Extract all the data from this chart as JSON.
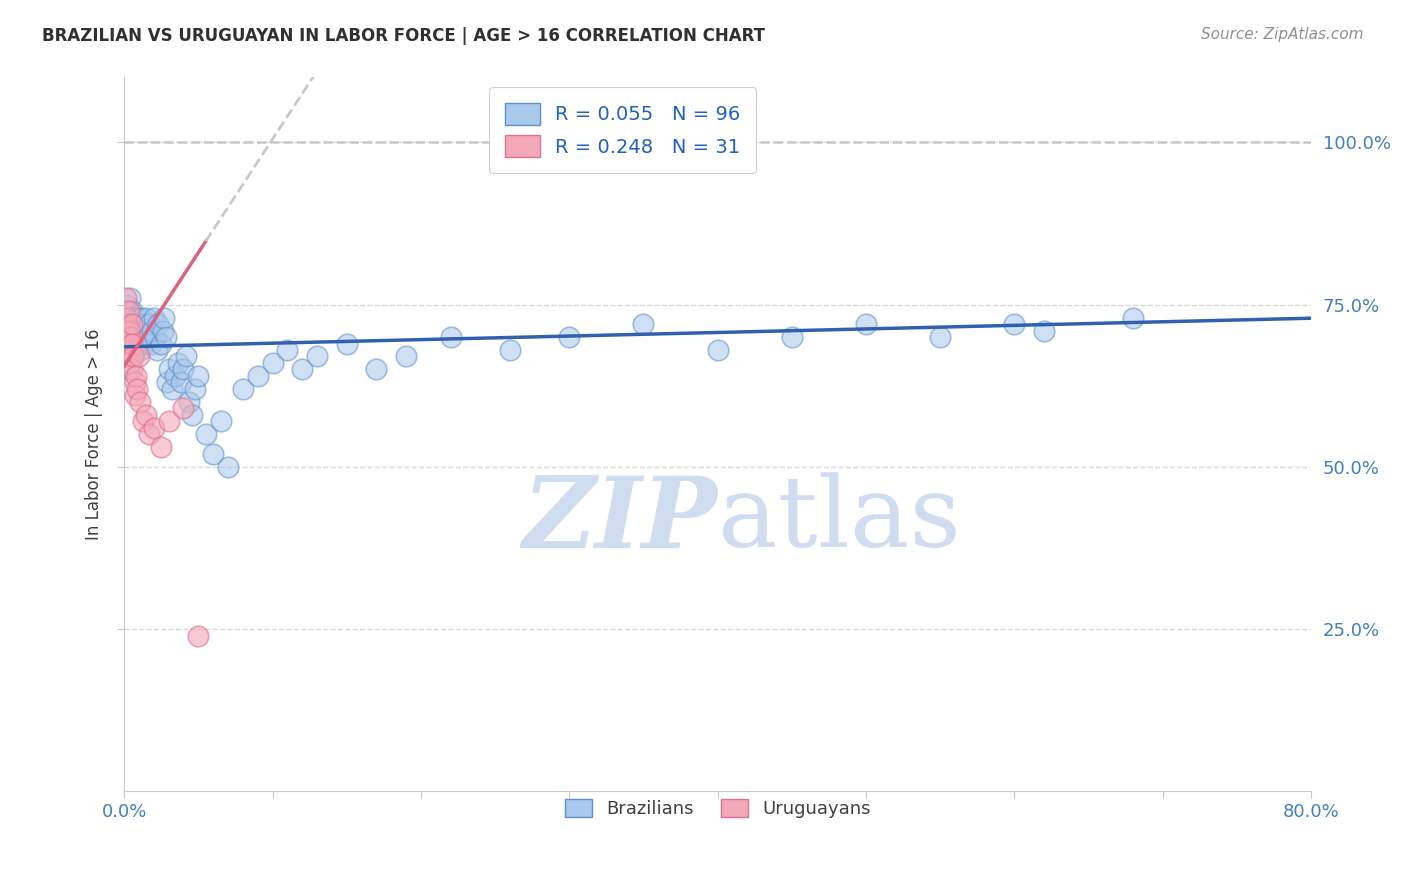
{
  "title": "BRAZILIAN VS URUGUAYAN IN LABOR FORCE | AGE > 16 CORRELATION CHART",
  "source": "Source: ZipAtlas.com",
  "ylabel": "In Labor Force | Age > 16",
  "xlim": [
    0.0,
    0.8
  ],
  "ylim": [
    0.0,
    1.1
  ],
  "xticks": [
    0.0,
    0.1,
    0.2,
    0.3,
    0.4,
    0.5,
    0.6,
    0.7,
    0.8
  ],
  "xticklabels": [
    "0.0%",
    "",
    "",
    "",
    "",
    "",
    "",
    "",
    "80.0%"
  ],
  "yticks": [
    0.25,
    0.5,
    0.75,
    1.0
  ],
  "yticklabels": [
    "25.0%",
    "50.0%",
    "75.0%",
    "100.0%"
  ],
  "blue_color": "#A8C8EC",
  "pink_color": "#F4A8B8",
  "blue_edge_color": "#6090C8",
  "pink_edge_color": "#E07090",
  "blue_line_color": "#3060B0",
  "pink_line_color": "#E06080",
  "dashed_line_color": "#C8C8C8",
  "grid_color": "#D8D8D8",
  "title_color": "#303030",
  "axis_label_color": "#404040",
  "tick_color": "#4080C0",
  "watermark_zip": "ZIP",
  "watermark_atlas": "atlas",
  "watermark_color": "#D0DCF0",
  "legend_text_color": "#2060C0",
  "legend_n_color": "#2060C0",
  "R_blue": 0.055,
  "R_pink": 0.248,
  "N_blue": 96,
  "N_pink": 31,
  "blue_line_intercept": 0.685,
  "blue_line_slope": 0.055,
  "pink_line_intercept": 0.655,
  "pink_line_slope": 3.5,
  "blue_scatter_x": [
    0.001,
    0.001,
    0.001,
    0.001,
    0.001,
    0.002,
    0.002,
    0.002,
    0.002,
    0.002,
    0.003,
    0.003,
    0.003,
    0.003,
    0.003,
    0.003,
    0.004,
    0.004,
    0.004,
    0.004,
    0.004,
    0.005,
    0.005,
    0.005,
    0.005,
    0.006,
    0.006,
    0.006,
    0.007,
    0.007,
    0.007,
    0.008,
    0.008,
    0.008,
    0.009,
    0.009,
    0.01,
    0.01,
    0.01,
    0.011,
    0.011,
    0.012,
    0.012,
    0.013,
    0.013,
    0.014,
    0.015,
    0.015,
    0.016,
    0.017,
    0.018,
    0.019,
    0.02,
    0.021,
    0.022,
    0.023,
    0.025,
    0.026,
    0.027,
    0.028,
    0.029,
    0.03,
    0.032,
    0.034,
    0.036,
    0.038,
    0.04,
    0.042,
    0.044,
    0.046,
    0.048,
    0.05,
    0.055,
    0.06,
    0.065,
    0.07,
    0.08,
    0.09,
    0.1,
    0.11,
    0.12,
    0.13,
    0.15,
    0.17,
    0.19,
    0.22,
    0.26,
    0.3,
    0.35,
    0.4,
    0.45,
    0.5,
    0.55,
    0.6,
    0.62,
    0.68
  ],
  "blue_scatter_y": [
    0.72,
    0.7,
    0.68,
    0.66,
    0.74,
    0.71,
    0.69,
    0.67,
    0.73,
    0.75,
    0.7,
    0.68,
    0.66,
    0.72,
    0.74,
    0.65,
    0.69,
    0.71,
    0.67,
    0.73,
    0.76,
    0.7,
    0.68,
    0.72,
    0.74,
    0.69,
    0.71,
    0.67,
    0.7,
    0.72,
    0.68,
    0.71,
    0.69,
    0.73,
    0.7,
    0.72,
    0.69,
    0.71,
    0.73,
    0.7,
    0.68,
    0.71,
    0.73,
    0.7,
    0.72,
    0.69,
    0.71,
    0.73,
    0.7,
    0.72,
    0.69,
    0.71,
    0.73,
    0.7,
    0.68,
    0.72,
    0.69,
    0.71,
    0.73,
    0.7,
    0.63,
    0.65,
    0.62,
    0.64,
    0.66,
    0.63,
    0.65,
    0.67,
    0.6,
    0.58,
    0.62,
    0.64,
    0.55,
    0.52,
    0.57,
    0.5,
    0.62,
    0.64,
    0.66,
    0.68,
    0.65,
    0.67,
    0.69,
    0.65,
    0.67,
    0.7,
    0.68,
    0.7,
    0.72,
    0.68,
    0.7,
    0.72,
    0.7,
    0.72,
    0.71,
    0.73
  ],
  "pink_scatter_x": [
    0.001,
    0.001,
    0.001,
    0.001,
    0.002,
    0.002,
    0.002,
    0.003,
    0.003,
    0.003,
    0.004,
    0.004,
    0.004,
    0.005,
    0.005,
    0.005,
    0.006,
    0.007,
    0.007,
    0.008,
    0.009,
    0.01,
    0.011,
    0.013,
    0.015,
    0.017,
    0.02,
    0.025,
    0.03,
    0.04,
    0.05
  ],
  "pink_scatter_y": [
    0.73,
    0.71,
    0.68,
    0.76,
    0.7,
    0.72,
    0.67,
    0.69,
    0.71,
    0.74,
    0.68,
    0.7,
    0.66,
    0.72,
    0.69,
    0.65,
    0.67,
    0.63,
    0.61,
    0.64,
    0.62,
    0.67,
    0.6,
    0.57,
    0.58,
    0.55,
    0.56,
    0.53,
    0.57,
    0.59,
    0.24
  ]
}
